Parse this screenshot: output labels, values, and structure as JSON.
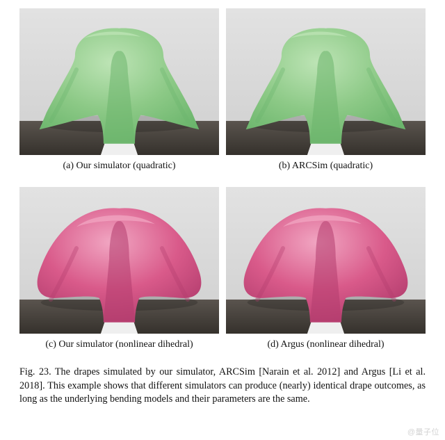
{
  "figure": {
    "panels": [
      {
        "id": "a",
        "label": "(a)  Our simulator (quadratic)",
        "cloth_color": "#8cc986",
        "cloth_shadow": "#6bb56c",
        "cloth_highlight": "#bde4b5",
        "table_color": "#4a4540",
        "floor_color": "#d9d9d9",
        "wall_color": "#d9d9d9"
      },
      {
        "id": "b",
        "label": "(b)  ARCSim (quadratic)",
        "cloth_color": "#8cc986",
        "cloth_shadow": "#6bb56c",
        "cloth_highlight": "#bde4b5",
        "table_color": "#4a4540",
        "floor_color": "#d9d9d9",
        "wall_color": "#d9d9d9"
      },
      {
        "id": "c",
        "label": "(c)  Our simulator (nonlinear dihedral)",
        "cloth_color": "#d95a8a",
        "cloth_shadow": "#b33d6e",
        "cloth_highlight": "#f1a6c2",
        "table_color": "#4a4540",
        "floor_color": "#d9d9d9",
        "wall_color": "#d9d9d9"
      },
      {
        "id": "d",
        "label": "(d)  Argus (nonlinear dihedral)",
        "cloth_color": "#d95a8a",
        "cloth_shadow": "#b33d6e",
        "cloth_highlight": "#f1a6c2",
        "table_color": "#4a4540",
        "floor_color": "#d9d9d9",
        "wall_color": "#d9d9d9"
      }
    ],
    "caption": "Fig. 23.  The drapes simulated by our simulator, ARCSim [Narain et al. 2012] and Argus [Li et al. 2018]. This example shows that different simulators can produce (nearly) identical drape outcomes, as long as the underlying bending models and their parameters are the same.",
    "caption_fontsize": 14,
    "sublabel_fontsize": 14,
    "background_color": "#ffffff"
  },
  "watermark": "@量子位"
}
